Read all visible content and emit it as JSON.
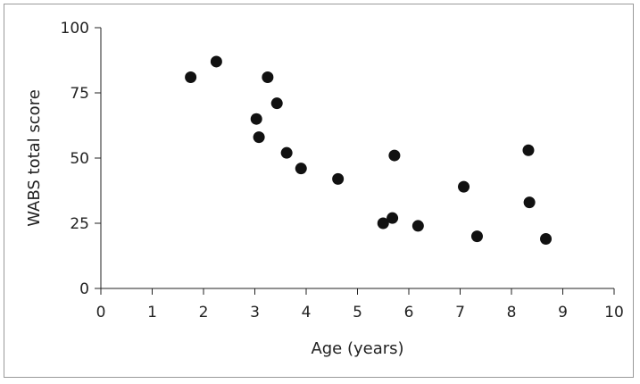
{
  "chart_data": {
    "type": "scatter",
    "title": "",
    "xlabel": "Age (years)",
    "ylabel": "WABS total score",
    "xlim": [
      0,
      10
    ],
    "ylim": [
      0,
      100
    ],
    "xticks": [
      0,
      1,
      2,
      3,
      4,
      5,
      6,
      7,
      8,
      9,
      10
    ],
    "yticks": [
      0,
      25,
      50,
      75,
      100
    ],
    "x_tick_labels": [
      "0",
      "1",
      "2",
      "3",
      "4",
      "5",
      "6",
      "7",
      "8",
      "9",
      "10"
    ],
    "y_tick_labels": [
      "0",
      "25",
      "50",
      "75",
      "100"
    ],
    "grid": false,
    "marker_color": "#111111",
    "points": [
      {
        "x": 1.75,
        "y": 81
      },
      {
        "x": 2.25,
        "y": 87
      },
      {
        "x": 3.03,
        "y": 65
      },
      {
        "x": 3.08,
        "y": 58
      },
      {
        "x": 3.25,
        "y": 81
      },
      {
        "x": 3.43,
        "y": 71
      },
      {
        "x": 3.62,
        "y": 52
      },
      {
        "x": 3.9,
        "y": 46
      },
      {
        "x": 4.62,
        "y": 42
      },
      {
        "x": 5.5,
        "y": 25
      },
      {
        "x": 5.68,
        "y": 27
      },
      {
        "x": 5.72,
        "y": 51
      },
      {
        "x": 6.18,
        "y": 24
      },
      {
        "x": 7.07,
        "y": 39
      },
      {
        "x": 7.33,
        "y": 20
      },
      {
        "x": 8.33,
        "y": 53
      },
      {
        "x": 8.35,
        "y": 33
      },
      {
        "x": 8.67,
        "y": 19
      }
    ]
  }
}
